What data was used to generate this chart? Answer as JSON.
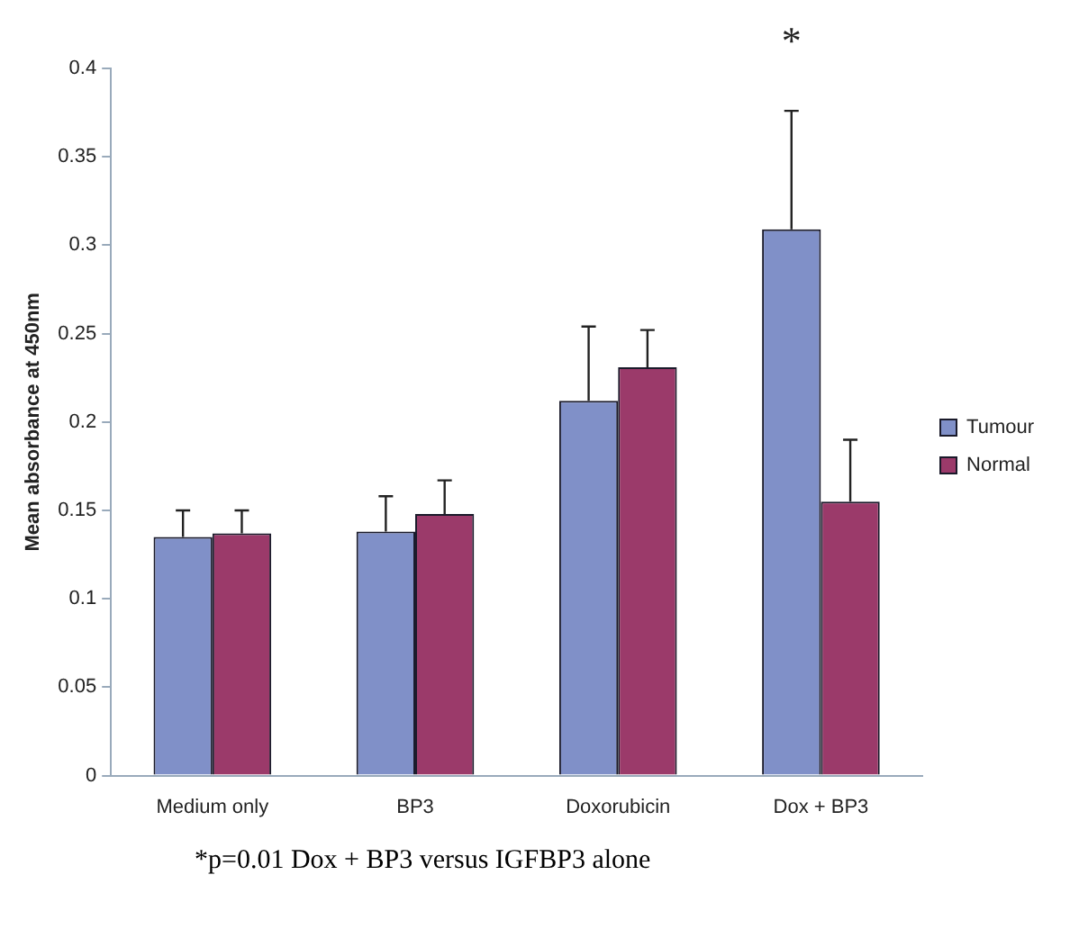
{
  "chart_data": {
    "type": "bar",
    "ylabel": "Mean absorbance at 450nm",
    "categories": [
      "Medium only",
      "BP3",
      "Doxorubicin",
      "Dox + BP3"
    ],
    "series": [
      {
        "name": "Tumour",
        "color": "#8090c8",
        "values": [
          0.135,
          0.138,
          0.212,
          0.309
        ],
        "errors": [
          [
            0.135,
            0.15
          ],
          [
            0.138,
            0.158
          ],
          [
            0.212,
            0.254
          ],
          [
            0.309,
            0.376
          ]
        ]
      },
      {
        "name": "Normal",
        "color": "#9b3a6a",
        "values": [
          0.137,
          0.148,
          0.231,
          0.155
        ],
        "errors": [
          [
            0.137,
            0.15
          ],
          [
            0.148,
            0.167
          ],
          [
            0.231,
            0.252
          ],
          [
            0.155,
            0.19
          ]
        ]
      }
    ],
    "ylim": [
      0,
      0.4
    ],
    "yticks": [
      0,
      0.05,
      0.1,
      0.15,
      0.2,
      0.25,
      0.3,
      0.35,
      0.4
    ],
    "grid": false,
    "legend": "right",
    "annotations": [
      "*",
      "*p=0.01 Dox + BP3 versus IGFBP3 alone"
    ]
  }
}
